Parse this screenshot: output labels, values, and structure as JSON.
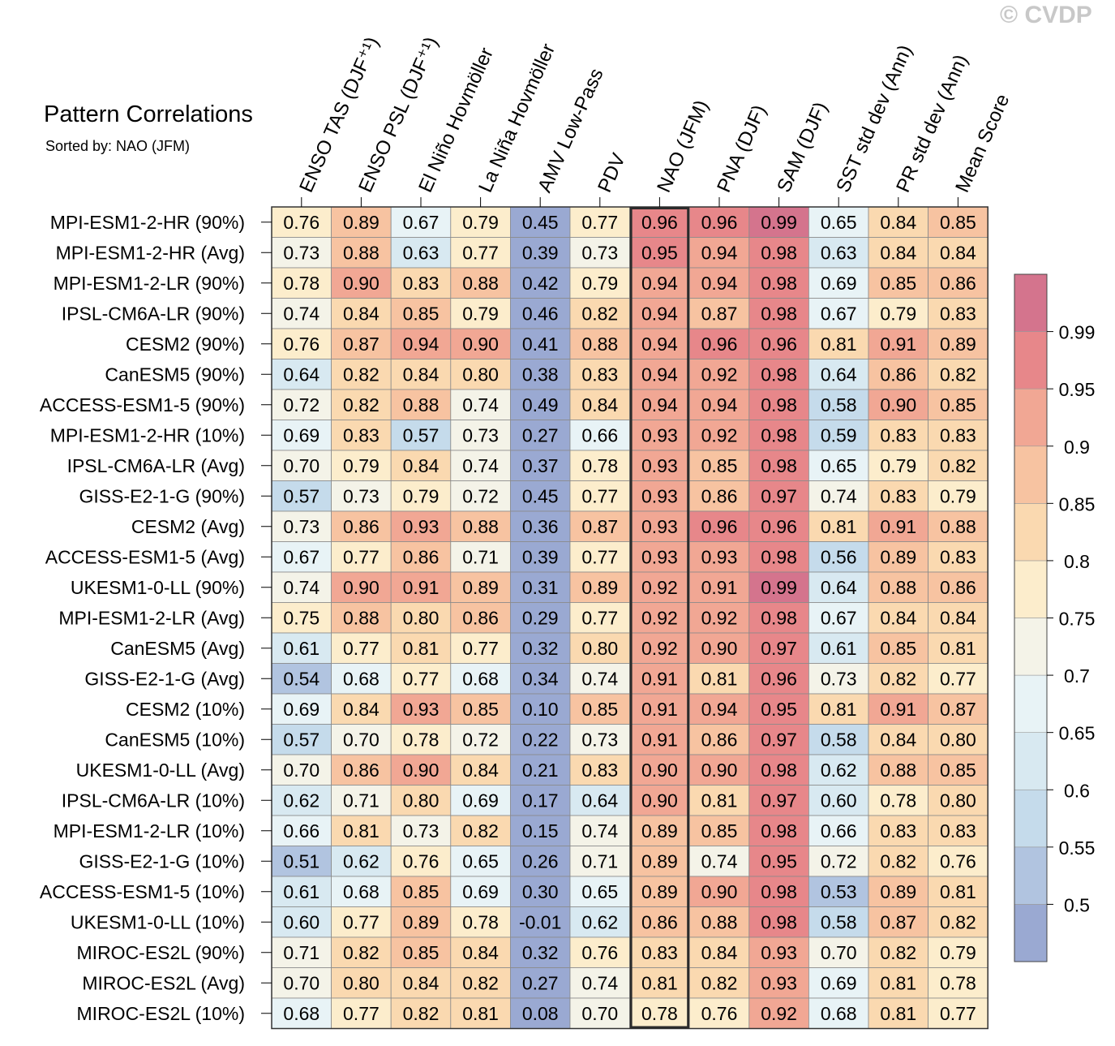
{
  "watermark": "© CVDP",
  "chart_data": {
    "type": "heatmap",
    "title": "Pattern Correlations",
    "subtitle": "Sorted by: NAO (JFM)",
    "columns": [
      "ENSO TAS (DJF⁺¹)",
      "ENSO PSL (DJF⁺¹)",
      "El Niño Hovmöller",
      "La Niña Hovmöller",
      "AMV Low-Pass",
      "PDV",
      "NAO (JFM)",
      "PNA (DJF)",
      "SAM (DJF)",
      "SST std dev (Ann)",
      "PR std dev (Ann)",
      "Mean Score"
    ],
    "highlighted_column": "NAO (JFM)",
    "rows": [
      "MPI-ESM1-2-HR (90%)",
      "MPI-ESM1-2-HR (Avg)",
      "MPI-ESM1-2-LR (90%)",
      "IPSL-CM6A-LR (90%)",
      "CESM2 (90%)",
      "CanESM5 (90%)",
      "ACCESS-ESM1-5 (90%)",
      "MPI-ESM1-2-HR (10%)",
      "IPSL-CM6A-LR (Avg)",
      "GISS-E2-1-G (90%)",
      "CESM2 (Avg)",
      "ACCESS-ESM1-5 (Avg)",
      "UKESM1-0-LL (90%)",
      "MPI-ESM1-2-LR (Avg)",
      "CanESM5 (Avg)",
      "GISS-E2-1-G (Avg)",
      "CESM2 (10%)",
      "CanESM5 (10%)",
      "UKESM1-0-LL (Avg)",
      "IPSL-CM6A-LR (10%)",
      "MPI-ESM1-2-LR (10%)",
      "GISS-E2-1-G (10%)",
      "ACCESS-ESM1-5 (10%)",
      "UKESM1-0-LL (10%)",
      "MIROC-ES2L (90%)",
      "MIROC-ES2L (Avg)",
      "MIROC-ES2L (10%)"
    ],
    "values": [
      [
        "0.76",
        "0.89",
        "0.67",
        "0.79",
        "0.45",
        "0.77",
        "0.96",
        "0.96",
        "0.99",
        "0.65",
        "0.84",
        "0.85"
      ],
      [
        "0.73",
        "0.88",
        "0.63",
        "0.77",
        "0.39",
        "0.73",
        "0.95",
        "0.94",
        "0.98",
        "0.63",
        "0.84",
        "0.84"
      ],
      [
        "0.78",
        "0.90",
        "0.83",
        "0.88",
        "0.42",
        "0.79",
        "0.94",
        "0.94",
        "0.98",
        "0.69",
        "0.85",
        "0.86"
      ],
      [
        "0.74",
        "0.84",
        "0.85",
        "0.79",
        "0.46",
        "0.82",
        "0.94",
        "0.87",
        "0.98",
        "0.67",
        "0.79",
        "0.83"
      ],
      [
        "0.76",
        "0.87",
        "0.94",
        "0.90",
        "0.41",
        "0.88",
        "0.94",
        "0.96",
        "0.96",
        "0.81",
        "0.91",
        "0.89"
      ],
      [
        "0.64",
        "0.82",
        "0.84",
        "0.80",
        "0.38",
        "0.83",
        "0.94",
        "0.92",
        "0.98",
        "0.64",
        "0.86",
        "0.82"
      ],
      [
        "0.72",
        "0.82",
        "0.88",
        "0.74",
        "0.49",
        "0.84",
        "0.94",
        "0.94",
        "0.98",
        "0.58",
        "0.90",
        "0.85"
      ],
      [
        "0.69",
        "0.83",
        "0.57",
        "0.73",
        "0.27",
        "0.66",
        "0.93",
        "0.92",
        "0.98",
        "0.59",
        "0.83",
        "0.83"
      ],
      [
        "0.70",
        "0.79",
        "0.84",
        "0.74",
        "0.37",
        "0.78",
        "0.93",
        "0.85",
        "0.98",
        "0.65",
        "0.79",
        "0.82"
      ],
      [
        "0.57",
        "0.73",
        "0.79",
        "0.72",
        "0.45",
        "0.77",
        "0.93",
        "0.86",
        "0.97",
        "0.74",
        "0.83",
        "0.79"
      ],
      [
        "0.73",
        "0.86",
        "0.93",
        "0.88",
        "0.36",
        "0.87",
        "0.93",
        "0.96",
        "0.96",
        "0.81",
        "0.91",
        "0.88"
      ],
      [
        "0.67",
        "0.77",
        "0.86",
        "0.71",
        "0.39",
        "0.77",
        "0.93",
        "0.93",
        "0.98",
        "0.56",
        "0.89",
        "0.83"
      ],
      [
        "0.74",
        "0.90",
        "0.91",
        "0.89",
        "0.31",
        "0.89",
        "0.92",
        "0.91",
        "0.99",
        "0.64",
        "0.88",
        "0.86"
      ],
      [
        "0.75",
        "0.88",
        "0.80",
        "0.86",
        "0.29",
        "0.77",
        "0.92",
        "0.92",
        "0.98",
        "0.67",
        "0.84",
        "0.84"
      ],
      [
        "0.61",
        "0.77",
        "0.81",
        "0.77",
        "0.32",
        "0.80",
        "0.92",
        "0.90",
        "0.97",
        "0.61",
        "0.85",
        "0.81"
      ],
      [
        "0.54",
        "0.68",
        "0.77",
        "0.68",
        "0.34",
        "0.74",
        "0.91",
        "0.81",
        "0.96",
        "0.73",
        "0.82",
        "0.77"
      ],
      [
        "0.69",
        "0.84",
        "0.93",
        "0.85",
        "0.10",
        "0.85",
        "0.91",
        "0.94",
        "0.95",
        "0.81",
        "0.91",
        "0.87"
      ],
      [
        "0.57",
        "0.70",
        "0.78",
        "0.72",
        "0.22",
        "0.73",
        "0.91",
        "0.86",
        "0.97",
        "0.58",
        "0.84",
        "0.80"
      ],
      [
        "0.70",
        "0.86",
        "0.90",
        "0.84",
        "0.21",
        "0.83",
        "0.90",
        "0.90",
        "0.98",
        "0.62",
        "0.88",
        "0.85"
      ],
      [
        "0.62",
        "0.71",
        "0.80",
        "0.69",
        "0.17",
        "0.64",
        "0.90",
        "0.81",
        "0.97",
        "0.60",
        "0.78",
        "0.80"
      ],
      [
        "0.66",
        "0.81",
        "0.73",
        "0.82",
        "0.15",
        "0.74",
        "0.89",
        "0.85",
        "0.98",
        "0.66",
        "0.83",
        "0.83"
      ],
      [
        "0.51",
        "0.62",
        "0.76",
        "0.65",
        "0.26",
        "0.71",
        "0.89",
        "0.74",
        "0.95",
        "0.72",
        "0.82",
        "0.76"
      ],
      [
        "0.61",
        "0.68",
        "0.85",
        "0.69",
        "0.30",
        "0.65",
        "0.89",
        "0.90",
        "0.98",
        "0.53",
        "0.89",
        "0.81"
      ],
      [
        "0.60",
        "0.77",
        "0.89",
        "0.78",
        "-0.01",
        "0.62",
        "0.86",
        "0.88",
        "0.98",
        "0.58",
        "0.87",
        "0.82"
      ],
      [
        "0.71",
        "0.82",
        "0.85",
        "0.84",
        "0.32",
        "0.76",
        "0.83",
        "0.84",
        "0.93",
        "0.70",
        "0.82",
        "0.79"
      ],
      [
        "0.70",
        "0.80",
        "0.84",
        "0.82",
        "0.27",
        "0.74",
        "0.81",
        "0.82",
        "0.93",
        "0.69",
        "0.81",
        "0.78"
      ],
      [
        "0.68",
        "0.77",
        "0.82",
        "0.81",
        "0.08",
        "0.70",
        "0.78",
        "0.76",
        "0.92",
        "0.68",
        "0.81",
        "0.77"
      ]
    ],
    "colorbar": {
      "labels": [
        "0.99",
        "0.95",
        "0.9",
        "0.85",
        "0.8",
        "0.75",
        "0.7",
        "0.65",
        "0.6",
        "0.55",
        "0.5"
      ],
      "bounds": [
        0.5,
        0.55,
        0.6,
        0.65,
        0.7,
        0.75,
        0.8,
        0.85,
        0.9,
        0.95,
        0.99
      ],
      "colors": [
        "#9aa9d2",
        "#b1c4e0",
        "#c5dbeb",
        "#d8e9f1",
        "#e8f3f6",
        "#f4f3e8",
        "#fcedcc",
        "#fad9b0",
        "#f7c3a1",
        "#f1a794",
        "#e7878a",
        "#d4748d"
      ]
    }
  }
}
